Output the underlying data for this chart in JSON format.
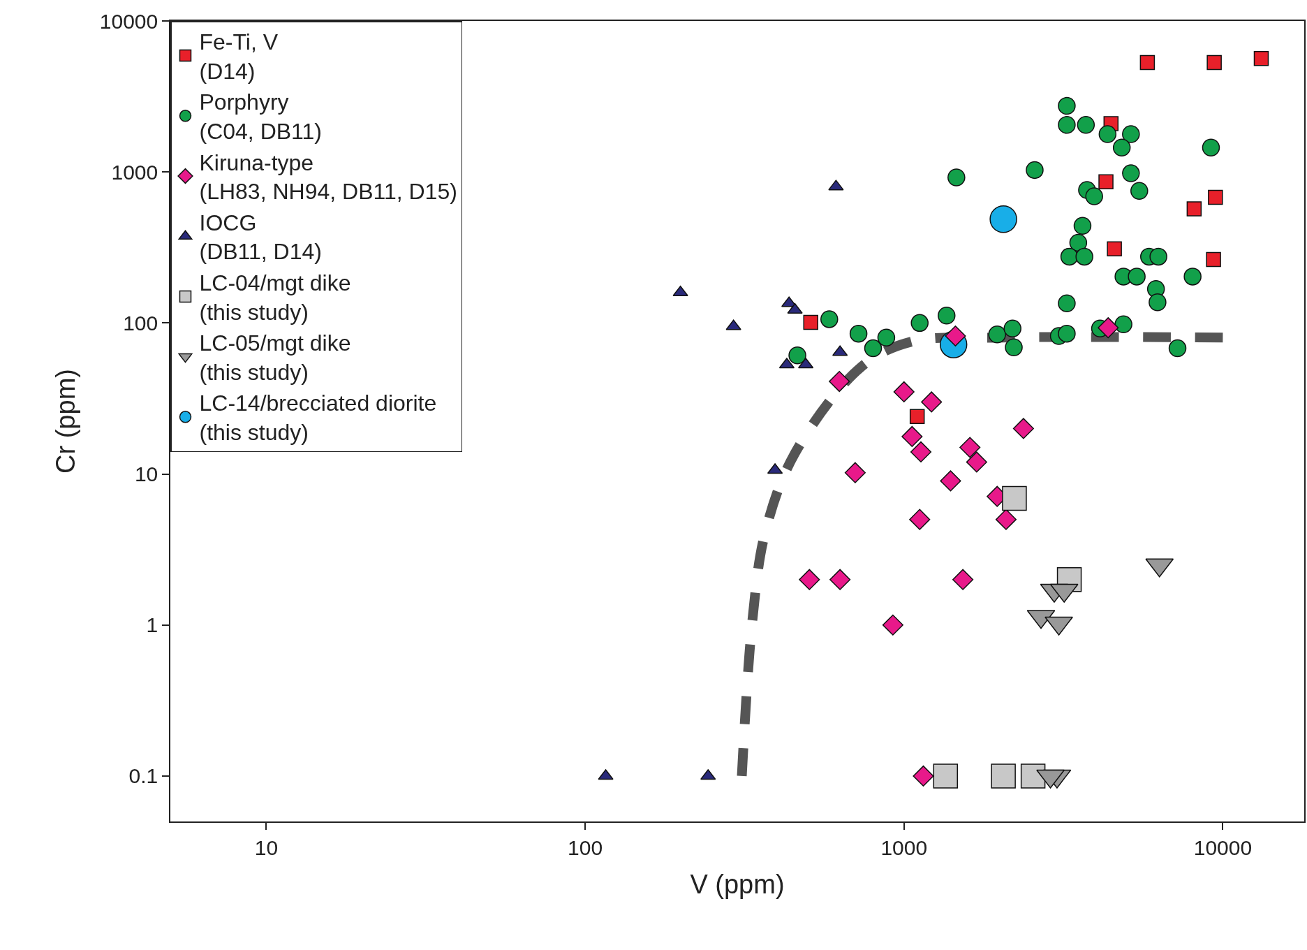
{
  "chart_data": {
    "type": "scatter",
    "xlabel": "V (ppm)",
    "ylabel": "Cr (ppm)",
    "log": "xy",
    "grid": false,
    "legend": "top left",
    "xlim": [
      5,
      18000
    ],
    "xticks": [
      10,
      100,
      1000,
      10000
    ],
    "ylim": [
      0.05,
      10000
    ],
    "yticks": [
      0.1,
      1,
      10,
      100,
      1000,
      10000
    ],
    "series": [
      {
        "name": "Fe-Ti, V\n(D14)",
        "color": "#e8202a",
        "marker": "square",
        "x": [
          5800,
          9400,
          13200,
          4460,
          4300,
          4570,
          8130,
          9480,
          9350,
          510,
          1100
        ],
        "values": [
          5300,
          5300,
          5640,
          2090,
          860,
          310,
          570,
          680,
          263,
          101,
          24
        ]
      },
      {
        "name": "Porphyry\n(C04, DB11)",
        "color": "#12a04a",
        "marker": "circle",
        "x": [
          3240,
          3240,
          3720,
          4350,
          5150,
          4820,
          9180,
          1460,
          2570,
          3750,
          3950,
          5150,
          5470,
          3630,
          3520,
          3300,
          3680,
          5870,
          6280,
          4880,
          5370,
          6170,
          6240,
          8040,
          3240,
          583,
          720,
          800,
          880,
          1120,
          1360,
          1960,
          2190,
          2210,
          3060,
          3240,
          4120,
          4880,
          7210,
          463
        ],
        "values": [
          2740,
          2050,
          2050,
          1780,
          1780,
          1450,
          1450,
          920,
          1030,
          760,
          690,
          980,
          750,
          440,
          340,
          275,
          275,
          275,
          275,
          203,
          203,
          168,
          137,
          203,
          135,
          106,
          85,
          68,
          80,
          100,
          112,
          84,
          92,
          69,
          82,
          85,
          92,
          98,
          68,
          61
        ]
      },
      {
        "name": "Kiruna-type\n(LH83, NH94, DB11, D15)",
        "color": "#e8198a",
        "marker": "diamond",
        "x": [
          627,
          1000,
          1220,
          1060,
          1130,
          2370,
          1610,
          1690,
          703,
          1400,
          1960,
          1120,
          2090,
          505,
          630,
          1530,
          923,
          1150,
          1450,
          4370
        ],
        "values": [
          41,
          35,
          30,
          17.7,
          14,
          20,
          15,
          12,
          10.2,
          9,
          7.1,
          5,
          5,
          2,
          2,
          2,
          1,
          0.1,
          82,
          93
        ]
      },
      {
        "name": "IOCG\n(DB11, D14)",
        "color": "#2a2a7a",
        "marker": "triangle",
        "x": [
          612,
          199,
          436,
          455,
          292,
          630,
          429,
          492,
          394,
          116,
          243
        ],
        "values": [
          800,
          159,
          135,
          122,
          95,
          64,
          53,
          53,
          10.6,
          0.1,
          0.1
        ]
      },
      {
        "name": "LC-04/mgt dike\n(this study)",
        "color": "#c8c8c8",
        "marker": "square",
        "x": [
          2220,
          3300,
          1350,
          2050,
          2540
        ],
        "values": [
          6.9,
          2,
          0.1,
          0.1,
          0.1
        ]
      },
      {
        "name": "LC-05/mgt dike\n(this study)",
        "color": "#999999",
        "marker": "triangle-down",
        "x": [
          6330,
          2960,
          3180,
          2690,
          3060,
          3020,
          2880
        ],
        "values": [
          2.5,
          1.7,
          1.7,
          1.14,
          1.03,
          0.1,
          0.1
        ]
      },
      {
        "name": "LC-14/brecciated diorite\n(this study)",
        "color": "#18aee8",
        "marker": "circle",
        "x": [
          2050,
          1430
        ],
        "values": [
          487,
          72
        ]
      },
      {
        "type": "line",
        "color": "#555555",
        "line_style": "dashed",
        "x": [
          310,
          335,
          367,
          453,
          733,
          1050,
          2050,
          10000
        ],
        "values": [
          0.1,
          1.1,
          4.1,
          13.5,
          51,
          75,
          80,
          80
        ]
      }
    ]
  }
}
